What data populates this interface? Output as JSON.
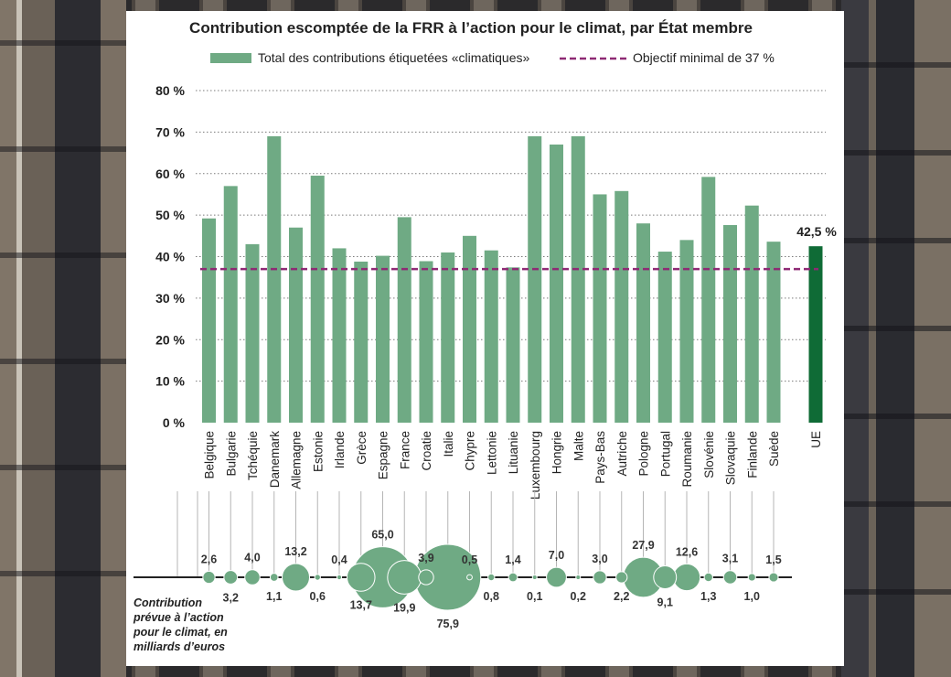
{
  "chart_data": {
    "type": "bar",
    "title": "Contribution escomptée de la FRR à l’action pour le climat, par  État membre",
    "legend": {
      "bar_label": "Total des contributions étiquetées «climatiques»",
      "line_label": "Objectif minimal de 37 %",
      "placement": "top"
    },
    "y_ticks": [
      "80 %",
      "70 %",
      "60 %",
      "50 %",
      "40 %",
      "30 %",
      "20 %",
      "10 %",
      "0 %"
    ],
    "ylim": [
      0,
      80
    ],
    "grid": true,
    "categories": [
      "Belgique",
      "Bulgarie",
      "Tchéquie",
      "Danemark",
      "Allemagne",
      "Estonie",
      "Irlande",
      "Grèce",
      "Espagne",
      "France",
      "Croatie",
      "Italie",
      "Chypre",
      "Lettonie",
      "Lituanie",
      "Luxembourg",
      "Hongrie",
      "Malte",
      "Pays-Bas",
      "Autriche",
      "Pologne",
      "Portugal",
      "Roumanie",
      "Slovénie",
      "Slovaquie",
      "Finlande",
      "Suède"
    ],
    "values": [
      49.2,
      57.0,
      43.0,
      69.0,
      47.0,
      59.5,
      42.0,
      38.8,
      40.2,
      49.5,
      38.9,
      41.0,
      45.0,
      41.5,
      37.4,
      69.0,
      67.0,
      69.0,
      55.0,
      55.8,
      48.0,
      41.2,
      44.0,
      59.2,
      47.6,
      52.3,
      43.6
    ],
    "eu": {
      "label": "UE",
      "value": 42.5,
      "value_label": "42,5 %"
    },
    "target_line": 37,
    "bubbles": {
      "caption": [
        "Contribution",
        "prévue à l’action",
        "pour le climat, en",
        "milliards d’euros"
      ],
      "values": [
        2.6,
        3.2,
        4.0,
        1.1,
        13.2,
        0.6,
        0.4,
        13.7,
        65.0,
        19.9,
        3.9,
        75.9,
        0.5,
        0.8,
        1.4,
        0.1,
        7.0,
        0.2,
        3.0,
        2.2,
        27.9,
        9.1,
        12.6,
        1.3,
        3.1,
        1.0,
        1.5
      ],
      "labels": [
        "2,6",
        "3,2",
        "4,0",
        "1,1",
        "13,2",
        "0,6",
        "0,4",
        "13,7",
        "65,0",
        "19,9",
        "3,9",
        "75,9",
        "0,5",
        "0,8",
        "1,4",
        "0,1",
        "7,0",
        "0,2",
        "3,0",
        "2,2",
        "27,9",
        "9,1",
        "12,6",
        "1,3",
        "3,1",
        "1,0",
        "1,5"
      ]
    },
    "colors": {
      "bar": "#6faa84",
      "eu_bar": "#0f6b36",
      "target_line": "#8e2a74",
      "bubble": "#6faa84",
      "grid": "#7a7a7a"
    }
  }
}
